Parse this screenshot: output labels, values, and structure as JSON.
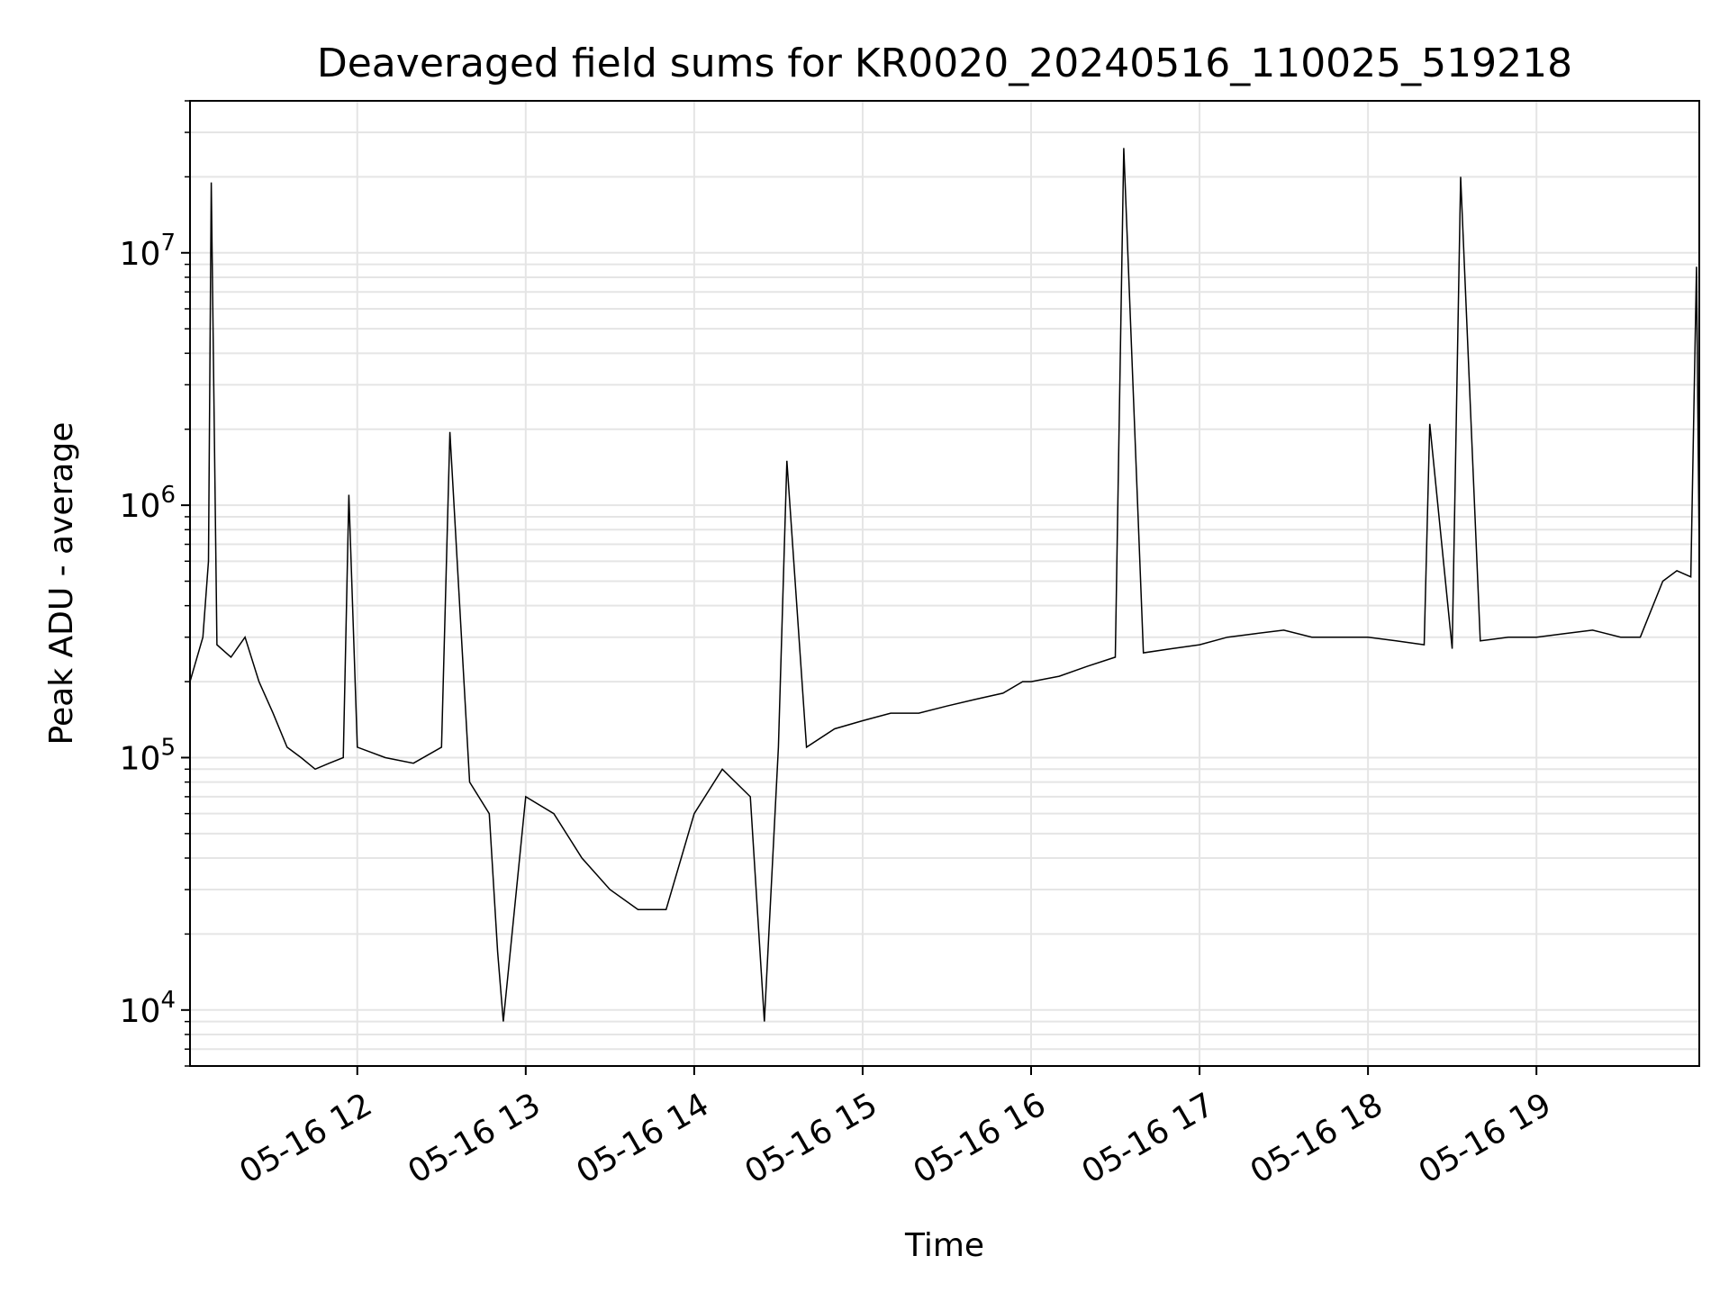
{
  "chart_data": {
    "type": "line",
    "title": "Deaveraged field sums for KR0020_20240516_110025_519218",
    "xlabel": "Time",
    "ylabel": "Peak ADU - average",
    "x_type": "datetime",
    "xlim": [
      "2024-05-16 11:00:25",
      "2024-05-16 19:58:00"
    ],
    "ylim": [
      6000,
      40000000
    ],
    "yscale": "log",
    "x_ticks": [
      {
        "t": "2024-05-16 12:00",
        "label": "05-16 12"
      },
      {
        "t": "2024-05-16 13:00",
        "label": "05-16 13"
      },
      {
        "t": "2024-05-16 14:00",
        "label": "05-16 14"
      },
      {
        "t": "2024-05-16 15:00",
        "label": "05-16 15"
      },
      {
        "t": "2024-05-16 16:00",
        "label": "05-16 16"
      },
      {
        "t": "2024-05-16 17:00",
        "label": "05-16 17"
      },
      {
        "t": "2024-05-16 18:00",
        "label": "05-16 18"
      },
      {
        "t": "2024-05-16 19:00",
        "label": "05-16 19"
      }
    ],
    "y_ticks": [
      {
        "v": 10000,
        "base": "10",
        "exp": "4"
      },
      {
        "v": 100000,
        "base": "10",
        "exp": "5"
      },
      {
        "v": 1000000,
        "base": "10",
        "exp": "6"
      },
      {
        "v": 10000000,
        "base": "10",
        "exp": "7"
      }
    ],
    "grid": true,
    "line_color": "#000000",
    "grid_color": "#e5e5e5",
    "series": [
      {
        "x": [
          "2024-05-16 11:00:25",
          "2024-05-16 11:05",
          "2024-05-16 11:07",
          "2024-05-16 11:08",
          "2024-05-16 11:10",
          "2024-05-16 11:15",
          "2024-05-16 11:20",
          "2024-05-16 11:25",
          "2024-05-16 11:30",
          "2024-05-16 11:35",
          "2024-05-16 11:40",
          "2024-05-16 11:45",
          "2024-05-16 11:50",
          "2024-05-16 11:55",
          "2024-05-16 11:57",
          "2024-05-16 12:00",
          "2024-05-16 12:10",
          "2024-05-16 12:20",
          "2024-05-16 12:30",
          "2024-05-16 12:33",
          "2024-05-16 12:40",
          "2024-05-16 12:47",
          "2024-05-16 12:50",
          "2024-05-16 12:52",
          "2024-05-16 13:00",
          "2024-05-16 13:10",
          "2024-05-16 13:20",
          "2024-05-16 13:30",
          "2024-05-16 13:40",
          "2024-05-16 13:50",
          "2024-05-16 14:00",
          "2024-05-16 14:10",
          "2024-05-16 14:20",
          "2024-05-16 14:25",
          "2024-05-16 14:30",
          "2024-05-16 14:33",
          "2024-05-16 14:40",
          "2024-05-16 14:50",
          "2024-05-16 15:00",
          "2024-05-16 15:10",
          "2024-05-16 15:20",
          "2024-05-16 15:30",
          "2024-05-16 15:40",
          "2024-05-16 15:50",
          "2024-05-16 15:57",
          "2024-05-16 16:00",
          "2024-05-16 16:10",
          "2024-05-16 16:20",
          "2024-05-16 16:30",
          "2024-05-16 16:33",
          "2024-05-16 16:40",
          "2024-05-16 16:50",
          "2024-05-16 17:00",
          "2024-05-16 17:10",
          "2024-05-16 17:20",
          "2024-05-16 17:30",
          "2024-05-16 17:40",
          "2024-05-16 17:50",
          "2024-05-16 18:00",
          "2024-05-16 18:10",
          "2024-05-16 18:20",
          "2024-05-16 18:22",
          "2024-05-16 18:30",
          "2024-05-16 18:33",
          "2024-05-16 18:40",
          "2024-05-16 18:50",
          "2024-05-16 19:00",
          "2024-05-16 19:10",
          "2024-05-16 19:20",
          "2024-05-16 19:30",
          "2024-05-16 19:37",
          "2024-05-16 19:45",
          "2024-05-16 19:50",
          "2024-05-16 19:55",
          "2024-05-16 19:57",
          "2024-05-16 19:58"
        ],
        "values": [
          200000,
          300000,
          600000,
          19000000,
          280000,
          250000,
          300000,
          200000,
          150000,
          110000,
          100000,
          90000,
          95000,
          100000,
          1100000,
          110000,
          100000,
          95000,
          110000,
          1950000,
          80000,
          60000,
          17000,
          9000,
          70000,
          60000,
          40000,
          30000,
          25000,
          25000,
          60000,
          90000,
          70000,
          9000,
          110000,
          1500000,
          110000,
          130000,
          140000,
          150000,
          150000,
          160000,
          170000,
          180000,
          200000,
          200000,
          210000,
          230000,
          250000,
          26000000,
          260000,
          270000,
          280000,
          300000,
          310000,
          320000,
          300000,
          300000,
          300000,
          290000,
          280000,
          2100000,
          270000,
          20000000,
          290000,
          300000,
          300000,
          310000,
          320000,
          300000,
          300000,
          500000,
          550000,
          520000,
          8800000,
          600000
        ]
      }
    ]
  }
}
